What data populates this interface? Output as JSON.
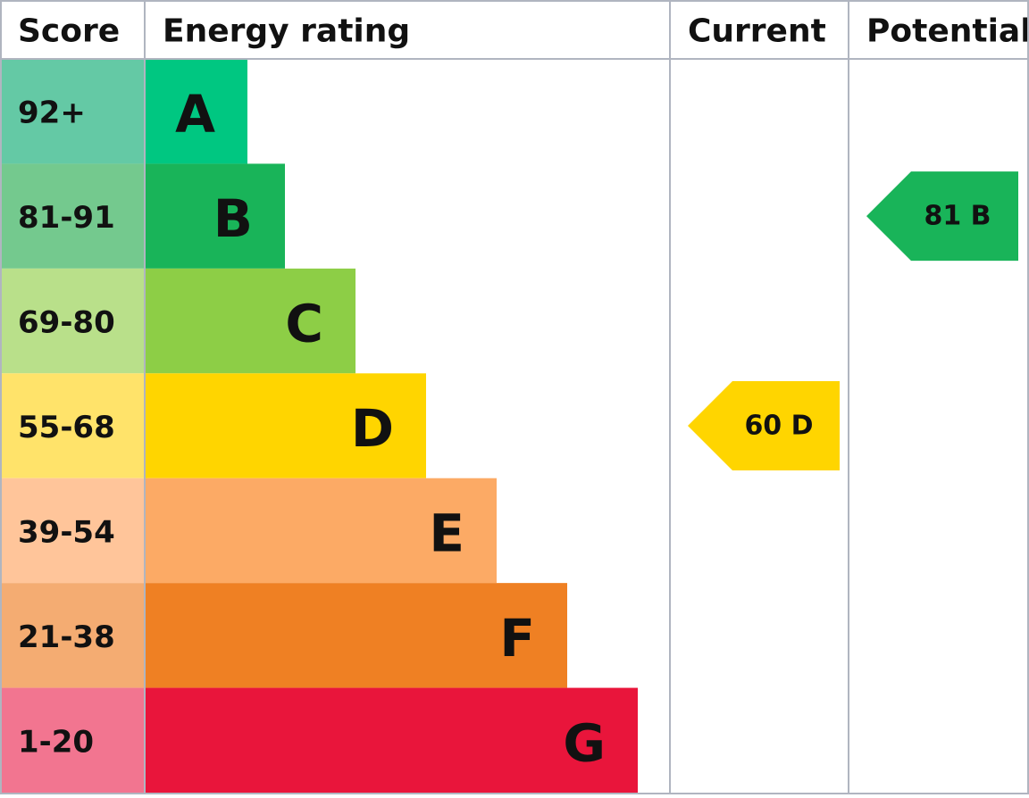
{
  "table": {
    "headers": [
      "Score",
      "Energy rating",
      "Current",
      "Potential"
    ],
    "rows": [
      {
        "score": "92+",
        "rating": "A",
        "score_color": "#64c9a5",
        "color": "#00c781",
        "current": null,
        "potential": null
      },
      {
        "score": "81-91",
        "rating": "B",
        "score_color": "#74c98e",
        "color": "#19b459",
        "current": null,
        "potential": "81 B"
      },
      {
        "score": "69-80",
        "rating": "C",
        "score_color": "#b9e08a",
        "color": "#8dce46",
        "current": null,
        "potential": null
      },
      {
        "score": "55-68",
        "rating": "D",
        "score_color": "#ffe36a",
        "color": "#ffd500",
        "current": "60 D",
        "potential": null
      },
      {
        "score": "39-54",
        "rating": "E",
        "score_color": "#ffc59a",
        "color": "#fcaa65",
        "current": null,
        "potential": null
      },
      {
        "score": "21-38",
        "rating": "F",
        "score_color": "#f4ac72",
        "color": "#ef8023",
        "current": null,
        "potential": null
      },
      {
        "score": "1-20",
        "rating": "G",
        "score_color": "#f27590",
        "color": "#e9153b",
        "current": null,
        "potential": null
      }
    ]
  }
}
